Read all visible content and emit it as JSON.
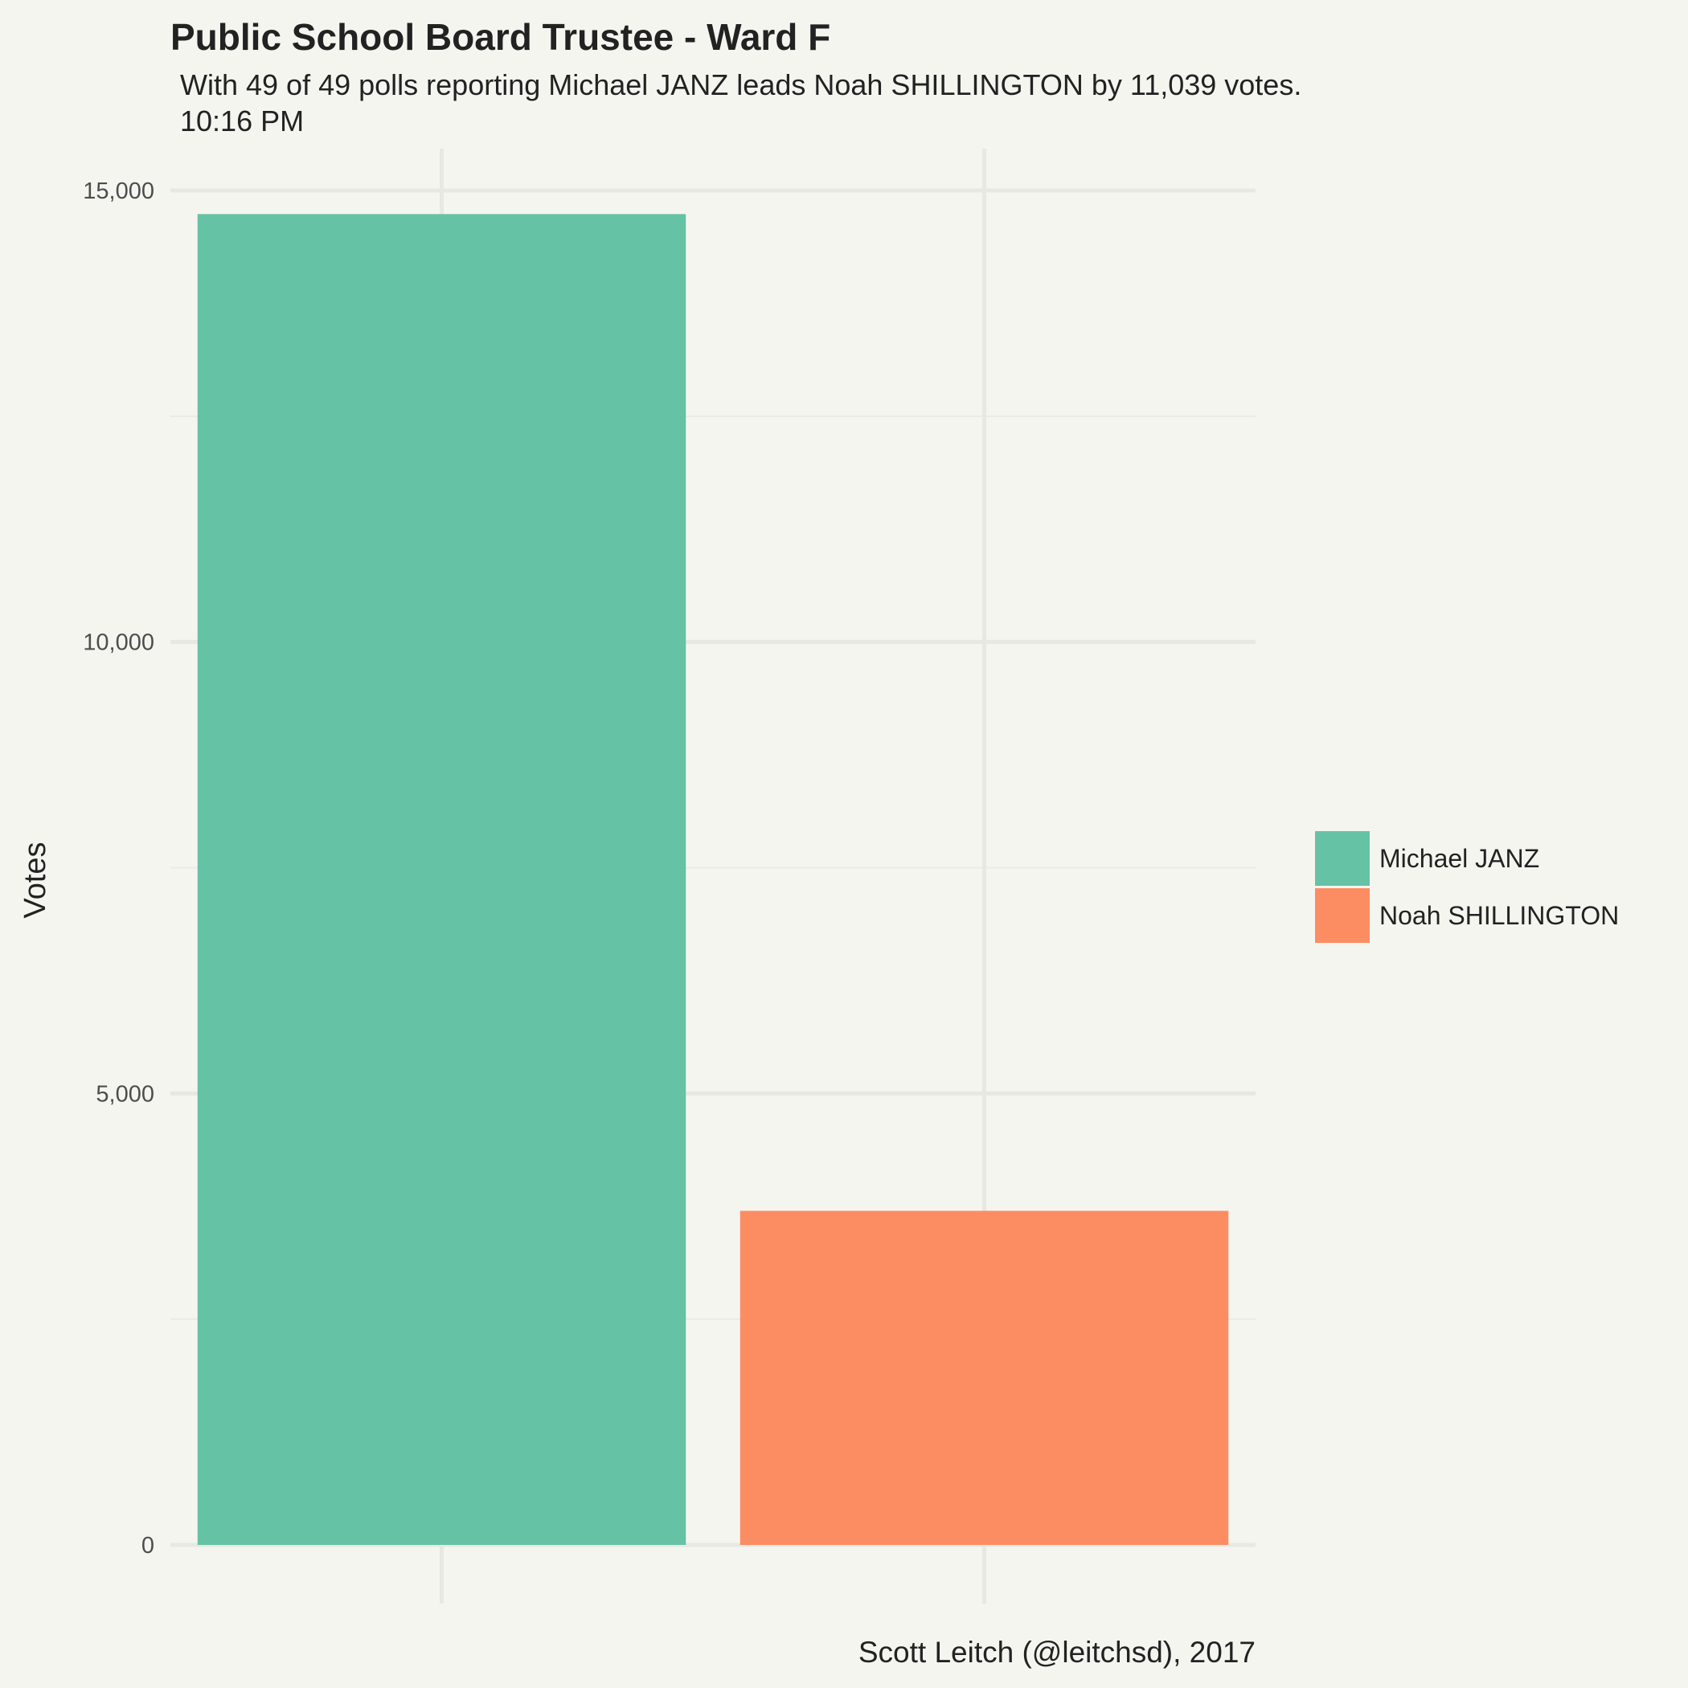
{
  "chart_data": {
    "type": "bar",
    "title": "Public School Board Trustee  - Ward F",
    "subtitle_lines": [
      "With 49 of 49 polls reporting Michael JANZ leads Noah SHILLINGTON by 11,039 votes.",
      "10:16 PM"
    ],
    "ylabel": "Votes",
    "xlabel": "",
    "caption": "Scott Leitch (@leitchsd), 2017",
    "categories": [
      "Michael JANZ",
      "Noah SHILLINGTON"
    ],
    "values": [
      14739,
      3700
    ],
    "colors": [
      "#66c2a5",
      "#fc8d62"
    ],
    "ylim": [
      0,
      15000
    ],
    "yticks": [
      0,
      5000,
      10000,
      15000
    ],
    "ytick_labels": [
      "0",
      "5,000",
      "10,000",
      "15,000"
    ],
    "grid": true,
    "legend": {
      "position": "right",
      "entries": [
        "Michael JANZ",
        "Noah SHILLINGTON"
      ]
    }
  }
}
